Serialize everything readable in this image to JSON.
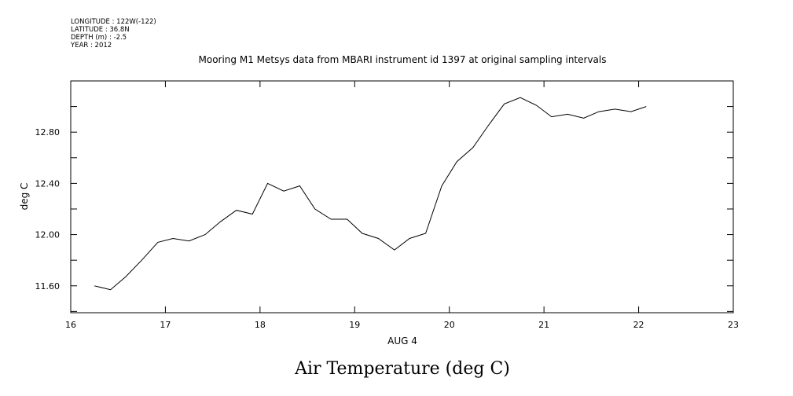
{
  "meta": {
    "longitude": "LONGITUDE : 122W(-122)",
    "latitude": "LATITUDE : 36.8N",
    "depth": "DEPTH (m) : -2.5",
    "year": "YEAR : 2012"
  },
  "chart_data": {
    "type": "line",
    "title": "Mooring M1 Metsys data from MBARI instrument id 1397 at original sampling intervals",
    "xlabel": "AUG  4",
    "ylabel": "deg C",
    "caption": "Air Temperature (deg C)",
    "xlim": [
      16,
      23
    ],
    "ylim": [
      11.39,
      13.2
    ],
    "x_ticks": [
      "16",
      "17",
      "18",
      "19",
      "20",
      "21",
      "22",
      "23"
    ],
    "y_ticks": [
      "11.60",
      "12.00",
      "12.40",
      "12.80"
    ],
    "grid": false,
    "series": [
      {
        "x": [
          16.25,
          16.42,
          16.58,
          16.75,
          16.92,
          17.08,
          17.25,
          17.42,
          17.58,
          17.75,
          17.92,
          18.08,
          18.25,
          18.42,
          18.58,
          18.75,
          18.92,
          19.08,
          19.25,
          19.42,
          19.58,
          19.75,
          19.92,
          20.08,
          20.25,
          20.42,
          20.58,
          20.75,
          20.92,
          21.08,
          21.25,
          21.42,
          21.58,
          21.75,
          21.92,
          22.08
        ],
        "y": [
          11.6,
          11.57,
          11.67,
          11.8,
          11.94,
          11.97,
          11.95,
          12.0,
          12.1,
          12.19,
          12.16,
          12.4,
          12.34,
          12.38,
          12.2,
          12.12,
          12.12,
          12.01,
          11.97,
          11.88,
          11.97,
          12.01,
          12.38,
          12.57,
          12.68,
          12.86,
          13.02,
          13.07,
          13.01,
          12.92,
          12.94,
          12.91,
          12.96,
          12.98,
          12.96,
          13.0
        ]
      }
    ]
  }
}
